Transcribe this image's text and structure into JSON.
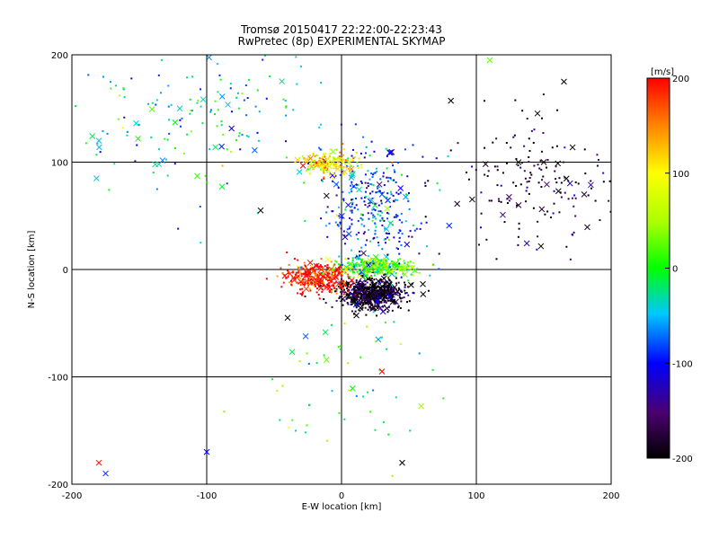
{
  "chart_data": {
    "type": "scatter",
    "title": "Tromsø 20150417 22:22:00-22:23:43",
    "subtitle": "RwPretec (8p) EXPERIMENTAL SKYMAP",
    "xlabel": "E-W location [km]",
    "ylabel": "N-S location [km]",
    "xlim": [
      -200,
      200
    ],
    "ylim": [
      -200,
      200
    ],
    "xticks": [
      -200,
      -100,
      0,
      100,
      200
    ],
    "yticks": [
      -200,
      -100,
      0,
      100,
      200
    ],
    "xtick_labels": [
      "-200",
      "-100",
      "0",
      "100",
      "200"
    ],
    "ytick_labels": [
      "-200",
      "-100",
      "0",
      "100",
      "200"
    ],
    "grid_x": [
      -100,
      0,
      100
    ],
    "grid_y": [
      -100,
      0,
      100
    ],
    "grid": true,
    "colorbar": {
      "label": "[m/s]",
      "range": [
        -200,
        200
      ],
      "ticks": [
        200,
        100,
        0,
        -100,
        -200
      ],
      "tick_labels": [
        "200",
        "100",
        "0",
        "-100",
        "-200"
      ],
      "colormap": "rainbow (black-purple-blue-cyan-green-yellow-orange-red)"
    },
    "markers": [
      "dot",
      "x-cross"
    ],
    "clusters": [
      {
        "region": "central eastern echo core",
        "x": [
          0,
          45
        ],
        "y": [
          -35,
          -10
        ],
        "dominant_velocity": -200,
        "density": "very high"
      },
      {
        "region": "red band west of origin",
        "x": [
          -40,
          5
        ],
        "y": [
          -20,
          5
        ],
        "dominant_velocity": 200,
        "density": "high"
      },
      {
        "region": "green band north of origin",
        "x": [
          0,
          50
        ],
        "y": [
          -5,
          10
        ],
        "dominant_velocity": 20,
        "density": "high"
      },
      {
        "region": "blue and cyan column",
        "x": [
          -15,
          60
        ],
        "y": [
          10,
          110
        ],
        "dominant_velocity": -80,
        "density": "high"
      },
      {
        "region": "yellow clump near 100 km north",
        "x": [
          -30,
          15
        ],
        "y": [
          90,
          110
        ],
        "dominant_velocity": 100,
        "density": "medium"
      },
      {
        "region": "cyan scatter north-west",
        "x": [
          -200,
          -20
        ],
        "y": [
          80,
          200
        ],
        "dominant_velocity": -40,
        "density": "medium"
      },
      {
        "region": "black and purple north-east",
        "x": [
          90,
          200
        ],
        "y": [
          20,
          150
        ],
        "dominant_velocity": -190,
        "density": "medium"
      },
      {
        "region": "sparse mixed southern tail",
        "x": [
          -60,
          70
        ],
        "y": [
          -200,
          -40
        ],
        "dominant_velocity": 0,
        "density": "low"
      }
    ],
    "points": [
      {
        "x": 20,
        "y": -25,
        "v": -200
      },
      {
        "x": 30,
        "y": -20,
        "v": -190
      },
      {
        "x": 10,
        "y": -30,
        "v": -200
      },
      {
        "x": 40,
        "y": -22,
        "v": -180
      },
      {
        "x": -25,
        "y": -5,
        "v": 200
      },
      {
        "x": -35,
        "y": -10,
        "v": 190
      },
      {
        "x": -15,
        "y": 0,
        "v": 180
      },
      {
        "x": 20,
        "y": 0,
        "v": 20
      },
      {
        "x": 40,
        "y": 5,
        "v": 10
      },
      {
        "x": 5,
        "y": 60,
        "v": -100
      },
      {
        "x": 30,
        "y": 70,
        "v": -80
      },
      {
        "x": -10,
        "y": 100,
        "v": 100
      },
      {
        "x": -120,
        "y": 150,
        "v": -40
      },
      {
        "x": -180,
        "y": 120,
        "v": -50
      },
      {
        "x": 150,
        "y": 100,
        "v": -190
      },
      {
        "x": 180,
        "y": 70,
        "v": -170
      },
      {
        "x": -175,
        "y": -190,
        "v": -90
      },
      {
        "x": -180,
        "y": -180,
        "v": 190
      },
      {
        "x": -100,
        "y": -170,
        "v": -100
      },
      {
        "x": 45,
        "y": -180,
        "v": -200
      },
      {
        "x": 30,
        "y": -95,
        "v": 200
      },
      {
        "x": -40,
        "y": -45,
        "v": -200
      },
      {
        "x": 165,
        "y": 175,
        "v": -200
      },
      {
        "x": 110,
        "y": 195,
        "v": 30
      },
      {
        "x": -60,
        "y": 55,
        "v": -190
      }
    ]
  }
}
